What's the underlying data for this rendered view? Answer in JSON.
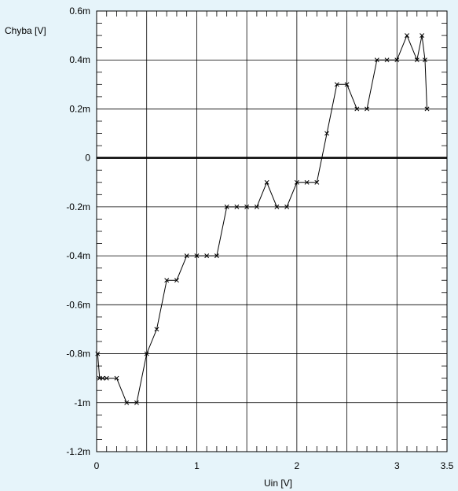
{
  "chart_data": {
    "type": "line",
    "title": "",
    "xlabel": "Uin [V]",
    "ylabel": "Chyba [V]",
    "xlim": [
      0,
      3.5
    ],
    "ylim": [
      -1.2,
      0.6
    ],
    "x_ticks": [
      0,
      0.5,
      1,
      1.5,
      2,
      2.5,
      3,
      3.5
    ],
    "x_tick_labels": [
      "0",
      "",
      "1",
      "",
      "2",
      "",
      "3",
      "3.5"
    ],
    "y_ticks": [
      0.6,
      0.4,
      0.2,
      0,
      -0.2,
      -0.4,
      -0.6,
      -0.8,
      -1.0,
      -1.2
    ],
    "y_tick_labels": [
      "0.6m",
      "0.4m",
      "0.2m",
      "0",
      "-0.2m",
      "-0.4m",
      "-0.6m",
      "-0.8m",
      "-1m",
      "-1.2m"
    ],
    "y_unit_note": "values in mV",
    "grid": true,
    "zero_line": true,
    "background_color": "#e6f4fa",
    "plot_background_color": "#ffffff",
    "series": [
      {
        "marker": "x",
        "color": "#000000",
        "x": [
          0.01,
          0.03,
          0.06,
          0.1,
          0.2,
          0.3,
          0.4,
          0.5,
          0.6,
          0.7,
          0.8,
          0.9,
          1.0,
          1.1,
          1.2,
          1.3,
          1.4,
          1.5,
          1.6,
          1.7,
          1.8,
          1.9,
          2.0,
          2.1,
          2.2,
          2.3,
          2.4,
          2.5,
          2.6,
          2.7,
          2.8,
          2.9,
          3.0,
          3.1,
          3.2,
          3.25,
          3.28,
          3.3
        ],
        "y": [
          -0.8,
          -0.9,
          -0.9,
          -0.9,
          -0.9,
          -1.0,
          -1.0,
          -0.8,
          -0.7,
          -0.5,
          -0.5,
          -0.4,
          -0.4,
          -0.4,
          -0.4,
          -0.2,
          -0.2,
          -0.2,
          -0.2,
          -0.1,
          -0.2,
          -0.2,
          -0.1,
          -0.1,
          -0.1,
          0.1,
          0.3,
          0.3,
          0.2,
          0.2,
          0.4,
          0.4,
          0.4,
          0.5,
          0.4,
          0.5,
          0.4,
          0.2
        ]
      }
    ]
  }
}
